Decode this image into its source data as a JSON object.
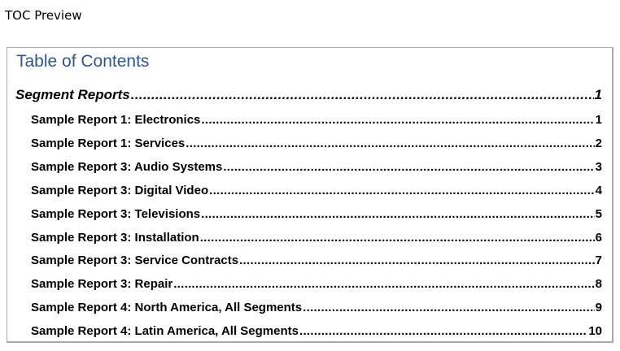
{
  "caption": "TOC Preview",
  "toc": {
    "title": "Table of Contents",
    "heading": {
      "label": "Segment Reports",
      "page": "1"
    },
    "entries": [
      {
        "label": "Sample Report 1: Electronics",
        "page": "1"
      },
      {
        "label": "Sample Report 1: Services",
        "page": "2"
      },
      {
        "label": "Sample Report 3: Audio Systems",
        "page": "3"
      },
      {
        "label": "Sample Report 3: Digital Video",
        "page": "4"
      },
      {
        "label": "Sample Report 3: Televisions",
        "page": "5"
      },
      {
        "label": "Sample Report 3: Installation",
        "page": "6"
      },
      {
        "label": "Sample Report 3: Service Contracts",
        "page": "7"
      },
      {
        "label": "Sample Report 3: Repair",
        "page": "8"
      },
      {
        "label": "Sample Report 4: North America, All Segments",
        "page": "9"
      },
      {
        "label": "Sample Report 4: Latin America, All Segments",
        "page": "10"
      }
    ]
  },
  "colors": {
    "title": "#2f5597",
    "border": "#a3a9b3"
  }
}
